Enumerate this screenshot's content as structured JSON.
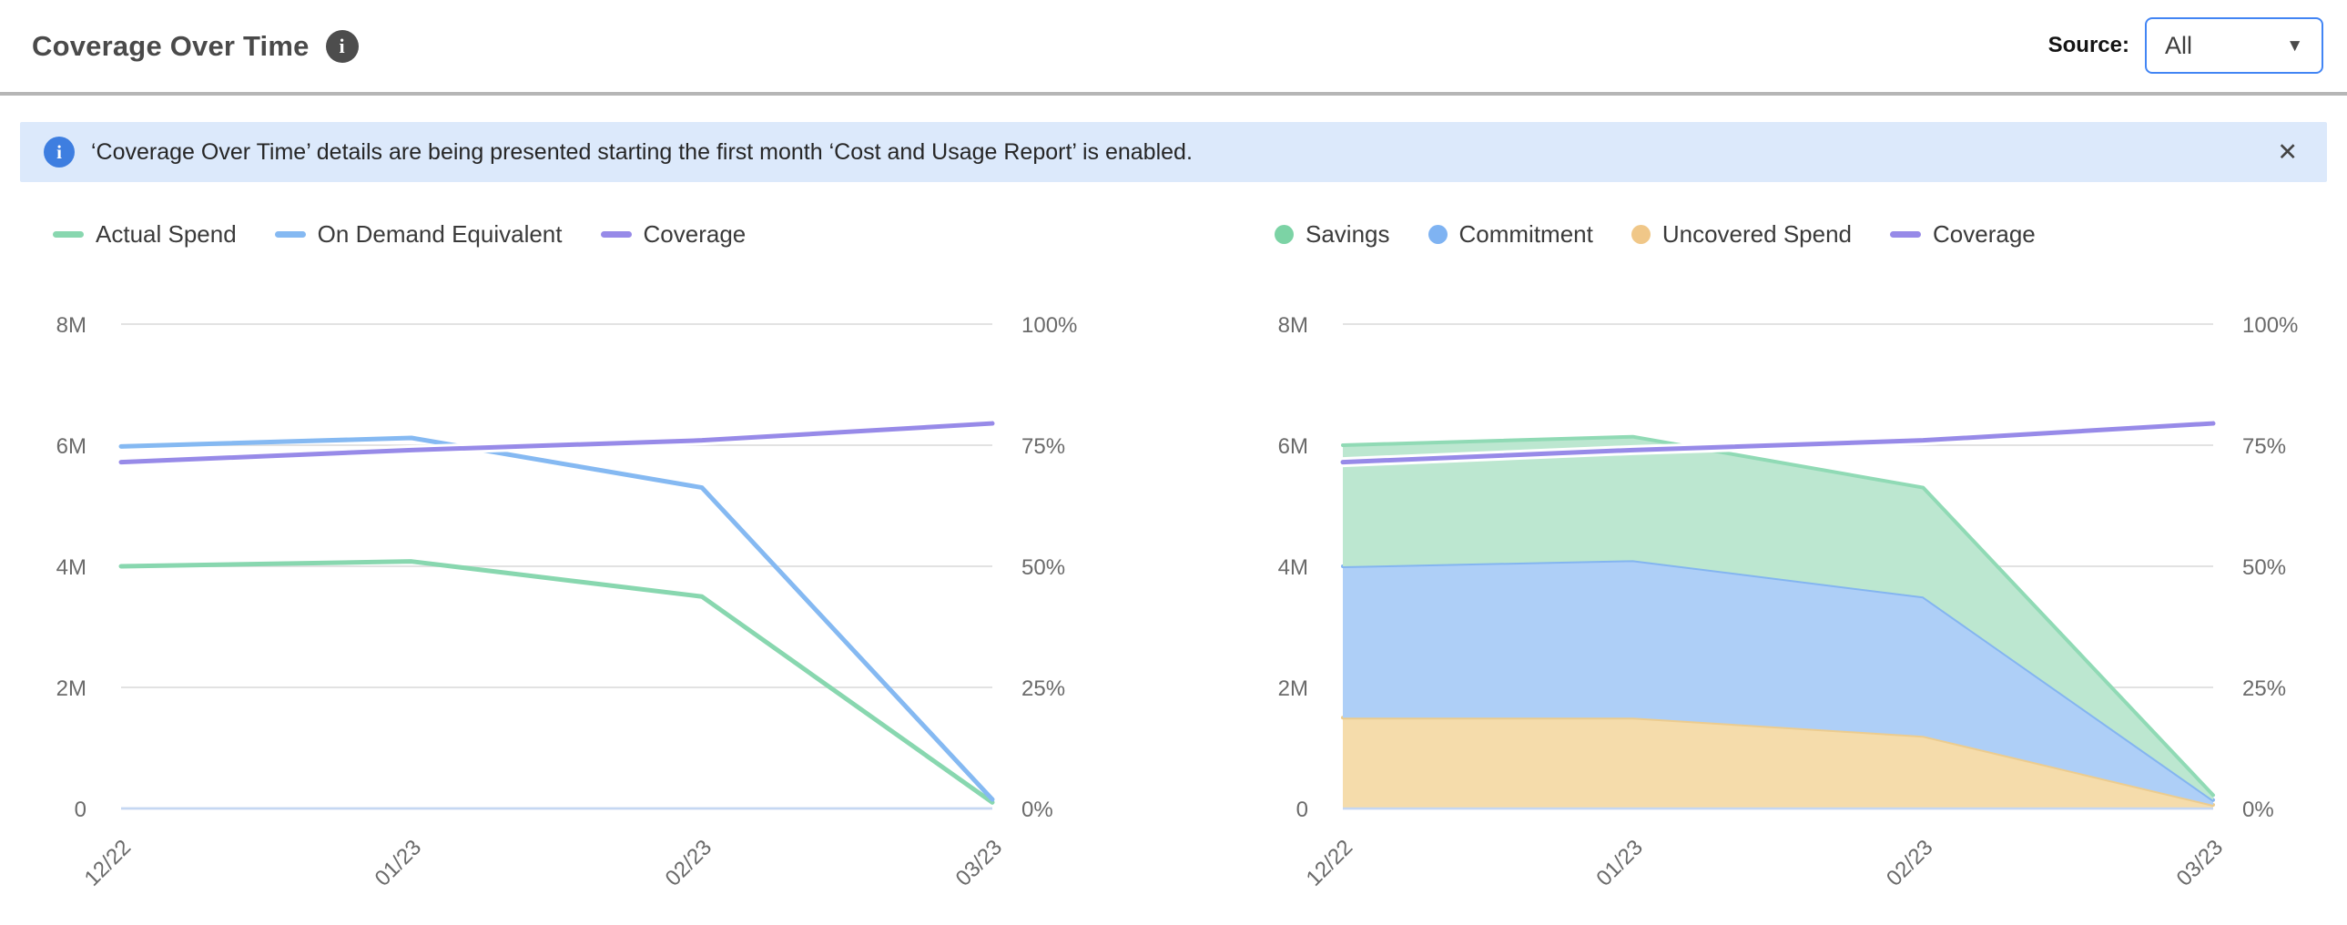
{
  "header": {
    "title": "Coverage Over Time",
    "info_icon": "i",
    "source_label": "Source:",
    "source_value": "All",
    "caret_icon": "▼"
  },
  "banner": {
    "icon": "i",
    "text": "‘Coverage Over Time’ details are being presented starting the first month ‘Cost and Usage Report’ is enabled.",
    "close_icon": "✕"
  },
  "colors": {
    "accent_blue": "#4285f4",
    "banner_bg": "#dce9fb",
    "divider": "#b6b6b6",
    "title_text": "#4a4a4a",
    "axis_text": "#6a6a6a",
    "gridline": "#e2e2e2",
    "zero_line": "#c5d7f2",
    "actual_spend": "#88d7af",
    "on_demand_equivalent": "#85b9f2",
    "coverage": "#978ae8",
    "savings_fill": "#bce7d0",
    "commitment_fill": "#aecff7",
    "uncovered_fill": "#f5dcab"
  },
  "chart_data": [
    {
      "type": "line",
      "categories": [
        "12/22",
        "01/23",
        "02/23",
        "03/23"
      ],
      "y_left": {
        "unit": "M",
        "min": 0,
        "max": 8,
        "ticks": [
          "8M",
          "6M",
          "4M",
          "2M",
          "0"
        ]
      },
      "y_right": {
        "unit": "%",
        "min": 0,
        "max": 100,
        "ticks": [
          "100%",
          "75%",
          "50%",
          "25%",
          "0%"
        ]
      },
      "grid": "horizontal",
      "legend_position": "top",
      "legend": [
        {
          "label": "Actual Spend",
          "marker": "line",
          "color": "#88d7af"
        },
        {
          "label": "On Demand Equivalent",
          "marker": "line",
          "color": "#85b9f2"
        },
        {
          "label": "Coverage",
          "marker": "line",
          "color": "#978ae8"
        }
      ],
      "series": [
        {
          "name": "Actual Spend",
          "kind": "line",
          "axis": "left",
          "color": "#88d7af",
          "values": [
            4.0,
            4.08,
            3.5,
            0.1
          ]
        },
        {
          "name": "On Demand Equivalent",
          "kind": "line",
          "axis": "left",
          "color": "#85b9f2",
          "values": [
            5.98,
            6.12,
            5.3,
            0.15
          ]
        },
        {
          "name": "Coverage",
          "kind": "line",
          "axis": "right",
          "color": "#978ae8",
          "halo": true,
          "values": [
            71.5,
            74,
            76,
            79.5
          ]
        }
      ]
    },
    {
      "type": "area",
      "categories": [
        "12/22",
        "01/23",
        "02/23",
        "03/23"
      ],
      "y_left": {
        "unit": "M",
        "min": 0,
        "max": 8,
        "ticks": [
          "8M",
          "6M",
          "4M",
          "2M",
          "0"
        ]
      },
      "y_right": {
        "unit": "%",
        "min": 0,
        "max": 100,
        "ticks": [
          "100%",
          "75%",
          "50%",
          "25%",
          "0%"
        ]
      },
      "grid": "horizontal",
      "legend_position": "top",
      "stacked": true,
      "legend": [
        {
          "label": "Savings",
          "marker": "dot",
          "color": "#7cd3a5"
        },
        {
          "label": "Commitment",
          "marker": "dot",
          "color": "#7fb3f2"
        },
        {
          "label": "Uncovered Spend",
          "marker": "dot",
          "color": "#f0c788"
        },
        {
          "label": "Coverage",
          "marker": "line",
          "color": "#978ae8"
        }
      ],
      "series": [
        {
          "name": "Uncovered Spend",
          "kind": "area",
          "axis": "left",
          "color": "#eccc8f",
          "fill": "#f5dcab",
          "values": [
            1.5,
            1.5,
            1.2,
            0.06
          ]
        },
        {
          "name": "Commitment",
          "kind": "area",
          "axis": "left",
          "color": "#84b5f0",
          "fill": "#aecff7",
          "values": [
            2.5,
            2.6,
            2.3,
            0.08
          ]
        },
        {
          "name": "Savings",
          "kind": "area",
          "axis": "left",
          "color": "#90dab5",
          "fill": "#bce7d0",
          "values": [
            2.0,
            2.04,
            1.8,
            0.08
          ]
        },
        {
          "name": "Coverage",
          "kind": "line",
          "axis": "right",
          "color": "#978ae8",
          "halo": true,
          "values": [
            71.5,
            74,
            76,
            79.5
          ]
        }
      ]
    }
  ]
}
